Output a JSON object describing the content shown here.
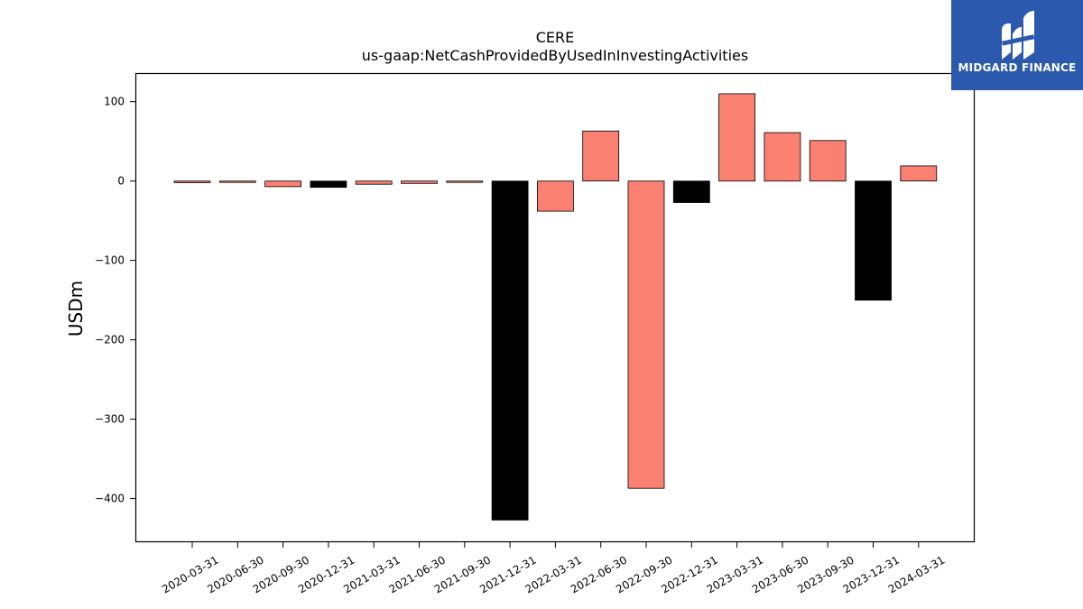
{
  "brand": {
    "name": "MIDGARD FINANCE",
    "background_color": "#2a59ad",
    "icon": "midgard-logo-icon"
  },
  "chart_data": {
    "type": "bar",
    "title": "CERE",
    "subtitle": "us-gaap:NetCashProvidedByUsedInInvestingActivities",
    "xlabel": "",
    "ylabel": "USDm",
    "categories": [
      "2020-03-31",
      "2020-06-30",
      "2020-09-30",
      "2020-12-31",
      "2021-03-31",
      "2021-06-30",
      "2021-09-30",
      "2021-12-31",
      "2022-03-31",
      "2022-06-30",
      "2022-09-30",
      "2022-12-31",
      "2023-03-31",
      "2023-06-30",
      "2023-09-30",
      "2023-12-31",
      "2024-03-31"
    ],
    "values": [
      -2,
      -1,
      -7,
      -8,
      -4,
      -3,
      -1,
      -427,
      -38,
      63,
      -387,
      -27,
      110,
      61,
      51,
      -150,
      19
    ],
    "colors": [
      "#fa8072",
      "#fa8072",
      "#fa8072",
      "#000000",
      "#fa8072",
      "#fa8072",
      "#fa8072",
      "#000000",
      "#fa8072",
      "#fa8072",
      "#fa8072",
      "#000000",
      "#fa8072",
      "#fa8072",
      "#fa8072",
      "#000000",
      "#fa8072"
    ],
    "yticks": [
      100,
      0,
      -100,
      -200,
      -300,
      -400
    ],
    "ytick_labels": [
      "100",
      "0",
      "−100",
      "−200",
      "−300",
      "−400"
    ],
    "ylim": [
      -455,
      136
    ],
    "grid": false,
    "legend": "none"
  }
}
